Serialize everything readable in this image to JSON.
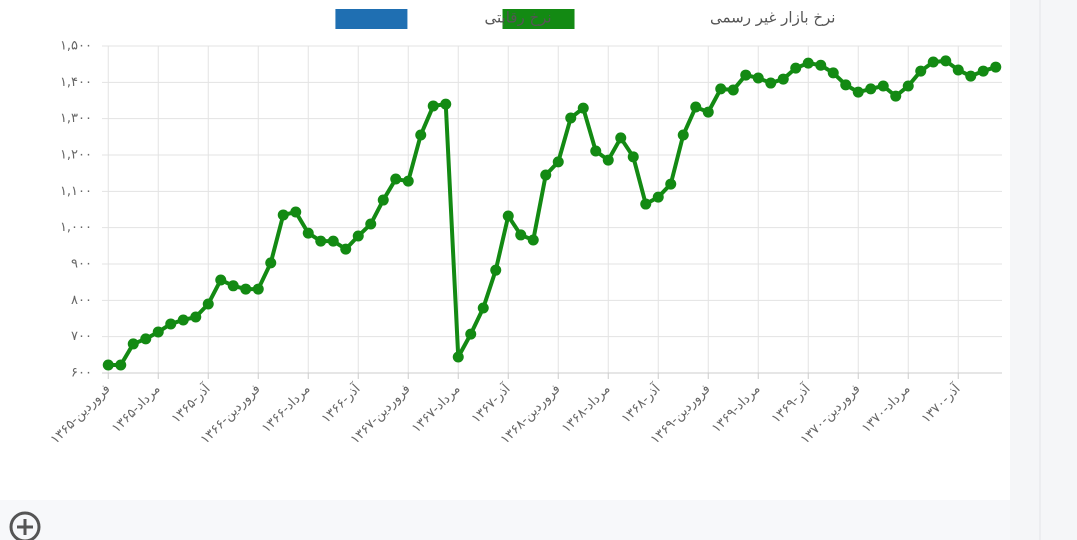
{
  "chart_data": {
    "type": "line",
    "categories": [
      "فروردین-۱۳۶۵",
      null,
      null,
      null,
      "مرداد-۱۳۶۵",
      null,
      null,
      null,
      "آذر-۱۳۶۵",
      null,
      null,
      null,
      "فروردین-۱۳۶۶",
      null,
      null,
      null,
      "مرداد-۱۳۶۶",
      null,
      null,
      null,
      "آذر-۱۳۶۶",
      null,
      null,
      null,
      "فروردین-۱۳۶۷",
      null,
      null,
      null,
      "مرداد-۱۳۶۷",
      null,
      null,
      null,
      "آذر-۱۳۶۷",
      null,
      null,
      null,
      "فروردین-۱۳۶۸",
      null,
      null,
      null,
      "مرداد-۱۳۶۸",
      null,
      null,
      null,
      "آذر-۱۳۶۸",
      null,
      null,
      null,
      "فروردین-۱۳۶۹",
      null,
      null,
      null,
      "مرداد-۱۳۶۹",
      null,
      null,
      null,
      "آذر-۱۳۶۹",
      null,
      null,
      null,
      "فروردین-۱۳۷۰",
      null,
      null,
      null,
      "مرداد-۱۳۷۰",
      null,
      null,
      null,
      "آذر-۱۳۷۰",
      null,
      null,
      null
    ],
    "series": [
      {
        "name": "نرخ بازار غیر رسمی",
        "color": "#138a13",
        "values": [
          622,
          622,
          680,
          694,
          713,
          735,
          746,
          754,
          790,
          856,
          840,
          831,
          831,
          903,
          1035,
          1043,
          985,
          963,
          963,
          941,
          977,
          1010,
          1076,
          1134,
          1128,
          1255,
          1335,
          1340,
          644,
          707,
          779,
          883,
          1032,
          980,
          966,
          1145,
          1181,
          1302,
          1329,
          1211,
          1186,
          1247,
          1195,
          1065,
          1084,
          1120,
          1255,
          1332,
          1318,
          1382,
          1379,
          1420,
          1412,
          1398,
          1409,
          1439,
          1453,
          1447,
          1426,
          1393,
          1373,
          1382,
          1390,
          1362,
          1390,
          1431,
          1456,
          1459,
          1434,
          1417,
          1431,
          1442
        ]
      },
      {
        "name": "نرخ رقابتی",
        "color": "#1f6fb2",
        "values": [
          null,
          null,
          null,
          null,
          null,
          null,
          null,
          null,
          null,
          null,
          null,
          null,
          null,
          null,
          null,
          null,
          null,
          null,
          null,
          null,
          null,
          null,
          null,
          null,
          null,
          null,
          null,
          null,
          null,
          null,
          null,
          null,
          null,
          null,
          null,
          null,
          null,
          null,
          null,
          null,
          null,
          null,
          null,
          null,
          null,
          null,
          null,
          null,
          null,
          null,
          null,
          null,
          null,
          null,
          null,
          null,
          null,
          null,
          null,
          null,
          null,
          null,
          null,
          null,
          null,
          null,
          null,
          null,
          null,
          null,
          null,
          null
        ]
      }
    ],
    "ylim": [
      600,
      1500
    ],
    "yticks": [
      {
        "value": 600,
        "label": "۶۰۰"
      },
      {
        "value": 700,
        "label": "۷۰۰"
      },
      {
        "value": 800,
        "label": "۸۰۰"
      },
      {
        "value": 900,
        "label": "۹۰۰"
      },
      {
        "value": 1000,
        "label": "۱,۰۰۰"
      },
      {
        "value": 1100,
        "label": "۱,۱۰۰"
      },
      {
        "value": 1200,
        "label": "۱,۲۰۰"
      },
      {
        "value": 1300,
        "label": "۱,۳۰۰"
      },
      {
        "value": 1400,
        "label": "۱,۴۰۰"
      },
      {
        "value": 1500,
        "label": "۱,۵۰۰"
      }
    ],
    "grid": true
  }
}
